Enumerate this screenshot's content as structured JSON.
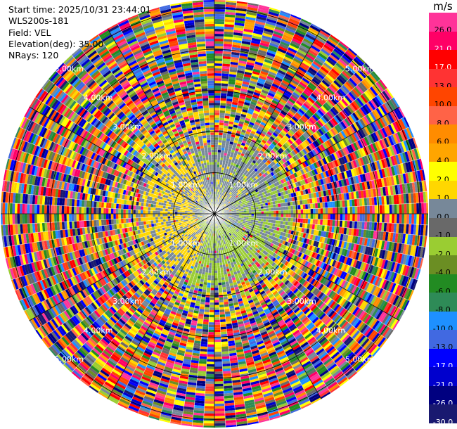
{
  "info": {
    "start_time": "Start time: 2025/10/31 23:44:01",
    "site": "WLS200s-181",
    "field": "Field: VEL",
    "elevation": "Elevation(deg): 35.00",
    "nrays": "NRays: 120"
  },
  "colorbar": {
    "unit": "m/s",
    "levels": [
      {
        "label": "26.0",
        "color": "#ff3399"
      },
      {
        "label": "21.0",
        "color": "#ff0066"
      },
      {
        "label": "17.0",
        "color": "#ff0000"
      },
      {
        "label": "13.0",
        "color": "#ff3333"
      },
      {
        "label": "10.0",
        "color": "#ff4500"
      },
      {
        "label": "8.0",
        "color": "#ff6347"
      },
      {
        "label": "6.0",
        "color": "#ff8c00"
      },
      {
        "label": "4.0",
        "color": "#ffa500"
      },
      {
        "label": "2.0",
        "color": "#ffff00"
      },
      {
        "label": "1.0",
        "color": "#ffd700"
      },
      {
        "label": "0.0",
        "color": "#778899"
      },
      {
        "label": "-1.0",
        "color": "#696969"
      },
      {
        "label": "-2.0",
        "color": "#9acd32"
      },
      {
        "label": "-4.0",
        "color": "#6b8e23"
      },
      {
        "label": "-6.0",
        "color": "#228b22"
      },
      {
        "label": "-8.0",
        "color": "#2e8b57"
      },
      {
        "label": "-10.0",
        "color": "#1e90ff"
      },
      {
        "label": "-13.0",
        "color": "#4169e1"
      },
      {
        "label": "-17.0",
        "color": "#0000ff"
      },
      {
        "label": "-21.0",
        "color": "#0000cd"
      },
      {
        "label": "-26.0",
        "color": "#000080"
      },
      {
        "label": "-30.0",
        "color": "#191970"
      }
    ]
  },
  "chart_data": {
    "type": "heatmap",
    "projection": "polar PPI",
    "field": "VEL",
    "nrays": 120,
    "range_rings_km": [
      1.0,
      2.0,
      3.0,
      4.0,
      5.0
    ],
    "range_labels": [
      "1.00km",
      "2.00km",
      "3.00km",
      "4.00km",
      "5.00km"
    ],
    "max_range_km": 5.2,
    "azimuth_lines_deg": [
      0,
      30,
      60,
      90,
      120,
      150,
      180,
      210,
      240,
      270,
      300,
      330
    ],
    "rings_label_diagonals_deg": [
      45,
      135,
      225,
      315
    ],
    "pattern_summary": "near range dominated by 0.0 and -2.0 m/s with 1.0 m/s patches to the west; beyond ~2 km random speckle across full colour scale"
  }
}
